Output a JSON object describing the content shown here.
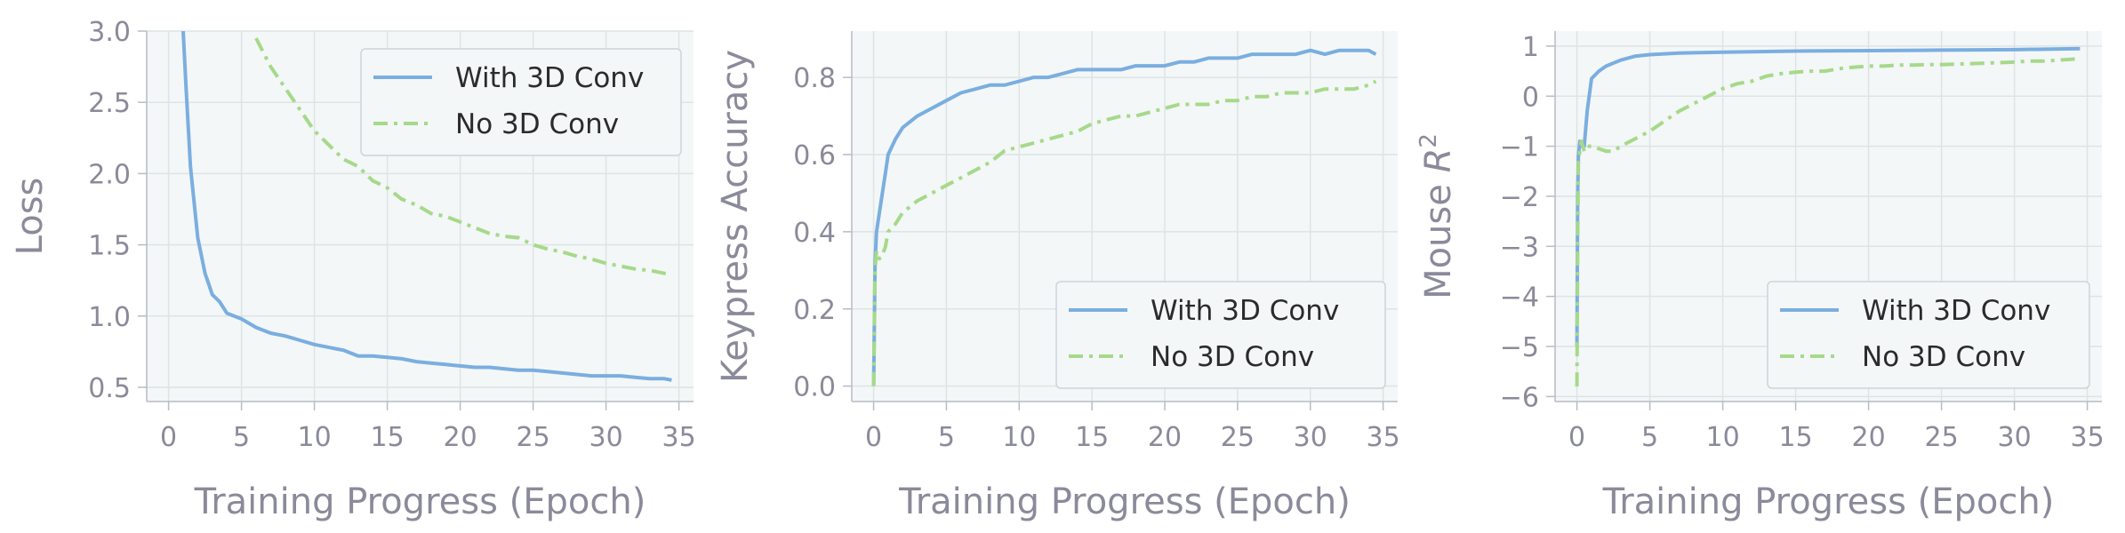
{
  "colors": {
    "with_3d": "#7aaee0",
    "no_3d": "#a6d98a",
    "plot_bg": "#f3f7f7",
    "text": "#8a8a9a",
    "legend_bg": "#f3f7f7",
    "legend_border": "#cfd3d8"
  },
  "chart_data": [
    {
      "type": "line",
      "xlabel": "Training Progress (Epoch)",
      "ylabel": "Loss",
      "xlim": [
        -1.5,
        36
      ],
      "ylim": [
        0.4,
        3.0
      ],
      "xticks": [
        "0",
        "5",
        "10",
        "15",
        "20",
        "25",
        "30",
        "35"
      ],
      "yticks": [
        "0.5",
        "1.0",
        "1.5",
        "2.0",
        "2.5",
        "3.0"
      ],
      "grid": true,
      "legend_position": "top-right",
      "series": [
        {
          "name": "With 3D Conv",
          "style": "solid",
          "x": [
            1,
            1.2,
            1.5,
            2,
            2.5,
            3,
            3.5,
            4,
            5,
            6,
            7,
            8,
            9,
            10,
            11,
            12,
            13,
            14,
            15,
            16,
            17,
            18,
            19,
            20,
            21,
            22,
            23,
            24,
            25,
            26,
            27,
            28,
            29,
            30,
            31,
            32,
            33,
            34,
            34.5
          ],
          "y": [
            3.0,
            2.6,
            2.05,
            1.55,
            1.3,
            1.15,
            1.1,
            1.02,
            0.98,
            0.92,
            0.88,
            0.86,
            0.83,
            0.8,
            0.78,
            0.76,
            0.72,
            0.72,
            0.71,
            0.7,
            0.68,
            0.67,
            0.66,
            0.65,
            0.64,
            0.64,
            0.63,
            0.62,
            0.62,
            0.61,
            0.6,
            0.59,
            0.58,
            0.58,
            0.58,
            0.57,
            0.56,
            0.56,
            0.55
          ]
        },
        {
          "name": "No 3D Conv",
          "style": "dashdot",
          "x": [
            6,
            7,
            8,
            9,
            10,
            11,
            12,
            13,
            14,
            15,
            16,
            17,
            18,
            19,
            20,
            21,
            22,
            23,
            24,
            25,
            26,
            27,
            28,
            29,
            30,
            31,
            32,
            33,
            34,
            34.5
          ],
          "y": [
            2.95,
            2.75,
            2.6,
            2.45,
            2.3,
            2.2,
            2.1,
            2.05,
            1.95,
            1.9,
            1.82,
            1.78,
            1.72,
            1.7,
            1.66,
            1.62,
            1.58,
            1.56,
            1.55,
            1.5,
            1.47,
            1.45,
            1.42,
            1.4,
            1.37,
            1.35,
            1.33,
            1.32,
            1.3,
            1.29
          ]
        }
      ]
    },
    {
      "type": "line",
      "xlabel": "Training Progress (Epoch)",
      "ylabel": "Keypress Accuracy",
      "xlim": [
        -1.5,
        36
      ],
      "ylim": [
        -0.04,
        0.92
      ],
      "xticks": [
        "0",
        "5",
        "10",
        "15",
        "20",
        "25",
        "30",
        "35"
      ],
      "yticks": [
        "0.0",
        "0.2",
        "0.4",
        "0.6",
        "0.8"
      ],
      "grid": true,
      "legend_position": "bottom-right",
      "series": [
        {
          "name": "With 3D Conv",
          "style": "solid",
          "x": [
            0,
            0.1,
            0.2,
            0.4,
            0.6,
            0.8,
            1,
            1.5,
            2,
            3,
            4,
            5,
            6,
            7,
            8,
            9,
            10,
            11,
            12,
            13,
            14,
            15,
            16,
            17,
            18,
            19,
            20,
            21,
            22,
            23,
            24,
            25,
            26,
            27,
            28,
            29,
            30,
            31,
            32,
            33,
            34,
            34.5
          ],
          "y": [
            0.0,
            0.32,
            0.4,
            0.45,
            0.5,
            0.55,
            0.6,
            0.64,
            0.67,
            0.7,
            0.72,
            0.74,
            0.76,
            0.77,
            0.78,
            0.78,
            0.79,
            0.8,
            0.8,
            0.81,
            0.82,
            0.82,
            0.82,
            0.82,
            0.83,
            0.83,
            0.83,
            0.84,
            0.84,
            0.85,
            0.85,
            0.85,
            0.86,
            0.86,
            0.86,
            0.86,
            0.87,
            0.86,
            0.87,
            0.87,
            0.87,
            0.86
          ]
        },
        {
          "name": "No 3D Conv",
          "style": "dashdot",
          "x": [
            0,
            0.1,
            0.2,
            0.4,
            0.6,
            0.8,
            1,
            1.5,
            2,
            3,
            4,
            5,
            6,
            7,
            8,
            9,
            10,
            11,
            12,
            13,
            14,
            15,
            16,
            17,
            18,
            19,
            20,
            21,
            22,
            23,
            24,
            25,
            26,
            27,
            28,
            29,
            30,
            31,
            32,
            33,
            34,
            34.5
          ],
          "y": [
            0.0,
            0.3,
            0.35,
            0.33,
            0.34,
            0.36,
            0.4,
            0.42,
            0.45,
            0.48,
            0.5,
            0.52,
            0.54,
            0.56,
            0.58,
            0.61,
            0.62,
            0.63,
            0.64,
            0.65,
            0.66,
            0.68,
            0.69,
            0.7,
            0.7,
            0.71,
            0.72,
            0.73,
            0.73,
            0.73,
            0.74,
            0.74,
            0.75,
            0.75,
            0.76,
            0.76,
            0.76,
            0.77,
            0.77,
            0.77,
            0.78,
            0.79
          ]
        }
      ]
    },
    {
      "type": "line",
      "xlabel": "Training Progress (Epoch)",
      "ylabel": "Mouse R²",
      "xlim": [
        -1.5,
        36
      ],
      "ylim": [
        -6.1,
        1.3
      ],
      "xticks": [
        "0",
        "5",
        "10",
        "15",
        "20",
        "25",
        "30",
        "35"
      ],
      "yticks": [
        "−6",
        "−5",
        "−4",
        "−3",
        "−2",
        "−1",
        "0",
        "1"
      ],
      "grid": true,
      "legend_position": "bottom-right",
      "series": [
        {
          "name": "With 3D Conv",
          "style": "solid",
          "x": [
            0,
            0.05,
            0.1,
            0.2,
            0.3,
            0.5,
            0.7,
            1,
            1.5,
            2,
            3,
            4,
            5,
            7,
            10,
            15,
            20,
            25,
            30,
            34.5
          ],
          "y": [
            -5.0,
            -2.0,
            -1.2,
            -0.9,
            -1.0,
            -1.0,
            -0.3,
            0.35,
            0.5,
            0.6,
            0.72,
            0.8,
            0.83,
            0.86,
            0.88,
            0.9,
            0.91,
            0.92,
            0.93,
            0.95
          ]
        },
        {
          "name": "No 3D Conv",
          "style": "dashdot",
          "x": [
            0,
            0.05,
            0.1,
            0.3,
            0.5,
            0.7,
            1,
            1.5,
            2,
            2.5,
            3,
            4,
            5,
            6,
            7,
            8,
            9,
            10,
            11,
            12,
            13,
            14,
            15,
            16,
            17,
            18,
            19,
            20,
            21,
            22,
            23,
            24,
            25,
            26,
            27,
            28,
            29,
            30,
            31,
            32,
            33,
            34,
            34.5
          ],
          "y": [
            -5.8,
            -3.0,
            -1.3,
            -0.9,
            -1.1,
            -1.0,
            -1.0,
            -1.05,
            -1.1,
            -1.1,
            -1.0,
            -0.85,
            -0.7,
            -0.5,
            -0.3,
            -0.15,
            0.0,
            0.15,
            0.25,
            0.3,
            0.4,
            0.45,
            0.48,
            0.5,
            0.5,
            0.55,
            0.58,
            0.6,
            0.6,
            0.62,
            0.62,
            0.63,
            0.63,
            0.64,
            0.65,
            0.66,
            0.67,
            0.68,
            0.7,
            0.7,
            0.72,
            0.74,
            0.75
          ]
        }
      ]
    }
  ]
}
